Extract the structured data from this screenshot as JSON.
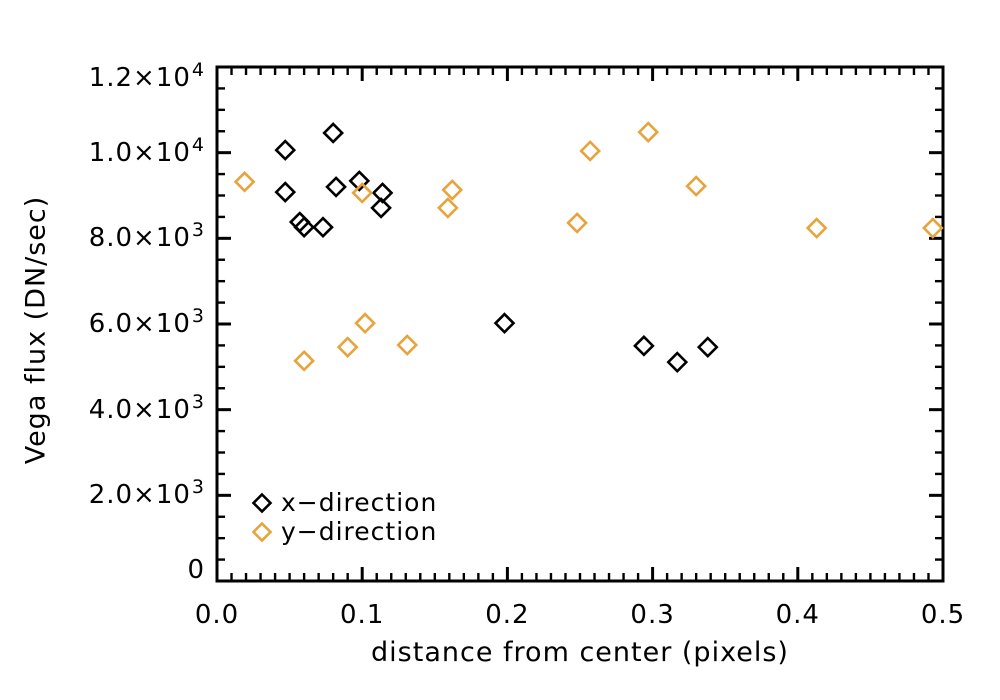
{
  "figure": {
    "background": "#FFFFFF",
    "axis_color": "#000000"
  },
  "chart_data": {
    "type": "scatter",
    "title": "",
    "xlabel": "distance from center (pixels)",
    "ylabel": "Vega flux (DN/sec)",
    "xlim": [
      0.0,
      0.5
    ],
    "ylim": [
      0,
      12000
    ],
    "grid": false,
    "x_major_ticks": [
      0.0,
      0.1,
      0.2,
      0.3,
      0.4,
      0.5
    ],
    "x_tick_labels": [
      "0.0",
      "0.1",
      "0.2",
      "0.3",
      "0.4",
      "0.5"
    ],
    "x_minor_tick_step": 0.01,
    "y_major_ticks": [
      0,
      2000,
      4000,
      6000,
      8000,
      10000,
      12000
    ],
    "y_tick_labels": [
      {
        "mantissa": "0",
        "exponent": ""
      },
      {
        "mantissa": "2.0×10",
        "exponent": "3"
      },
      {
        "mantissa": "4.0×10",
        "exponent": "3"
      },
      {
        "mantissa": "6.0×10",
        "exponent": "3"
      },
      {
        "mantissa": "8.0×10",
        "exponent": "3"
      },
      {
        "mantissa": "1.0×10",
        "exponent": "4"
      },
      {
        "mantissa": "1.2×10",
        "exponent": "4"
      }
    ],
    "y_minor_tick_step": 500,
    "legend": {
      "position": "lower-left",
      "items": [
        {
          "label": "x−direction",
          "marker": "open-diamond",
          "color": "#000000"
        },
        {
          "label": "y−direction",
          "marker": "open-diamond",
          "color": "#E8A43C"
        }
      ]
    },
    "series": [
      {
        "name": "x-direction",
        "color": "#000000",
        "marker": "open-diamond",
        "points": [
          [
            0.047,
            10060
          ],
          [
            0.08,
            10460
          ],
          [
            0.047,
            9080
          ],
          [
            0.082,
            9200
          ],
          [
            0.098,
            9340
          ],
          [
            0.114,
            9060
          ],
          [
            0.113,
            8710
          ],
          [
            0.057,
            8380
          ],
          [
            0.06,
            8260
          ],
          [
            0.073,
            8260
          ],
          [
            0.198,
            6020
          ],
          [
            0.294,
            5490
          ],
          [
            0.317,
            5110
          ],
          [
            0.338,
            5460
          ]
        ]
      },
      {
        "name": "y-direction",
        "color": "#E8A43C",
        "marker": "open-diamond",
        "points": [
          [
            0.019,
            9320
          ],
          [
            0.1,
            9060
          ],
          [
            0.162,
            9130
          ],
          [
            0.159,
            8710
          ],
          [
            0.257,
            10040
          ],
          [
            0.297,
            10480
          ],
          [
            0.33,
            9220
          ],
          [
            0.248,
            8360
          ],
          [
            0.413,
            8240
          ],
          [
            0.493,
            8240
          ],
          [
            0.06,
            5140
          ],
          [
            0.09,
            5460
          ],
          [
            0.102,
            6020
          ],
          [
            0.131,
            5510
          ]
        ]
      }
    ]
  }
}
